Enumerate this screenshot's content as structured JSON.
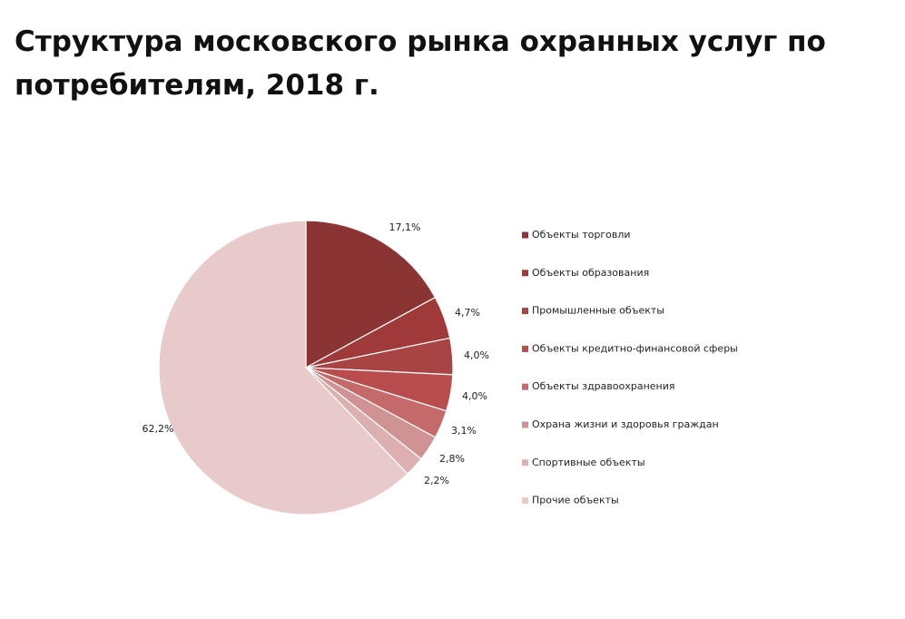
{
  "title": "Структура московского рынка охранных услуг по потребителям, 2018 г.",
  "chart_data": {
    "type": "pie",
    "title": "Структура московского рынка охранных услуг по потребителям, 2018 г.",
    "legend_position": "right",
    "categories": [
      "Объекты торговли",
      "Объекты образования",
      "Промышленные объекты",
      "Объекты кредитно-финансовой сферы",
      "Объекты здравоохранения",
      "Охрана жизни и здоровья граждан",
      "Спортивные объекты",
      "Прочие объекты"
    ],
    "values": [
      17.1,
      4.7,
      4.0,
      4.0,
      3.1,
      2.8,
      2.2,
      62.2
    ],
    "labels": [
      "17,1%",
      "4,7%",
      "4,0%",
      "4,0%",
      "3,1%",
      "2,8%",
      "2,2%",
      "62,2%"
    ],
    "colors": [
      "#8b3434",
      "#a03a3a",
      "#a84444",
      "#b94d4d",
      "#c56a6a",
      "#d09393",
      "#dcb0b0",
      "#e8caca"
    ]
  }
}
